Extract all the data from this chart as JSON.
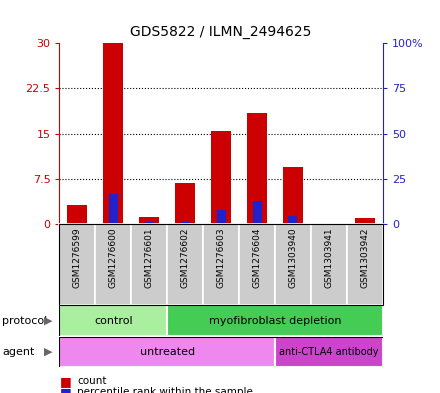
{
  "title": "GDS5822 / ILMN_2494625",
  "samples": [
    "GSM1276599",
    "GSM1276600",
    "GSM1276601",
    "GSM1276602",
    "GSM1276603",
    "GSM1276604",
    "GSM1303940",
    "GSM1303941",
    "GSM1303942"
  ],
  "counts": [
    3.2,
    30.0,
    1.1,
    6.8,
    15.5,
    18.5,
    9.5,
    0.05,
    1.0
  ],
  "percentile_ranks": [
    0.5,
    16.5,
    1.3,
    1.0,
    7.8,
    13.0,
    4.5,
    0.0,
    0.5
  ],
  "ylim_left": [
    0,
    30
  ],
  "ylim_right": [
    0,
    100
  ],
  "yticks_left": [
    0,
    7.5,
    15,
    22.5,
    30
  ],
  "yticks_right": [
    0,
    25,
    50,
    75,
    100
  ],
  "yticklabels_left": [
    "0",
    "7.5",
    "15",
    "22.5",
    "30"
  ],
  "yticklabels_right": [
    "0",
    "25",
    "50",
    "75",
    "100%"
  ],
  "bar_color": "#cc0000",
  "percentile_color": "#2222cc",
  "protocol_groups": [
    {
      "label": "control",
      "start": 0,
      "end": 3,
      "color": "#aaeea0"
    },
    {
      "label": "myofibroblast depletion",
      "start": 3,
      "end": 9,
      "color": "#44cc55"
    }
  ],
  "agent_groups": [
    {
      "label": "untreated",
      "start": 0,
      "end": 6,
      "color": "#ee88ee"
    },
    {
      "label": "anti-CTLA4 antibody",
      "start": 6,
      "end": 9,
      "color": "#cc44cc"
    }
  ],
  "protocol_label": "protocol",
  "agent_label": "agent",
  "count_label": "count",
  "percentile_label": "percentile rank within the sample",
  "left_axis_color": "#cc0000",
  "right_axis_color": "#2222cc",
  "bar_width": 0.55,
  "percentile_bar_width": 0.25,
  "grid_color": "black",
  "background_gray": "#cccccc",
  "bg_white": "#ffffff"
}
